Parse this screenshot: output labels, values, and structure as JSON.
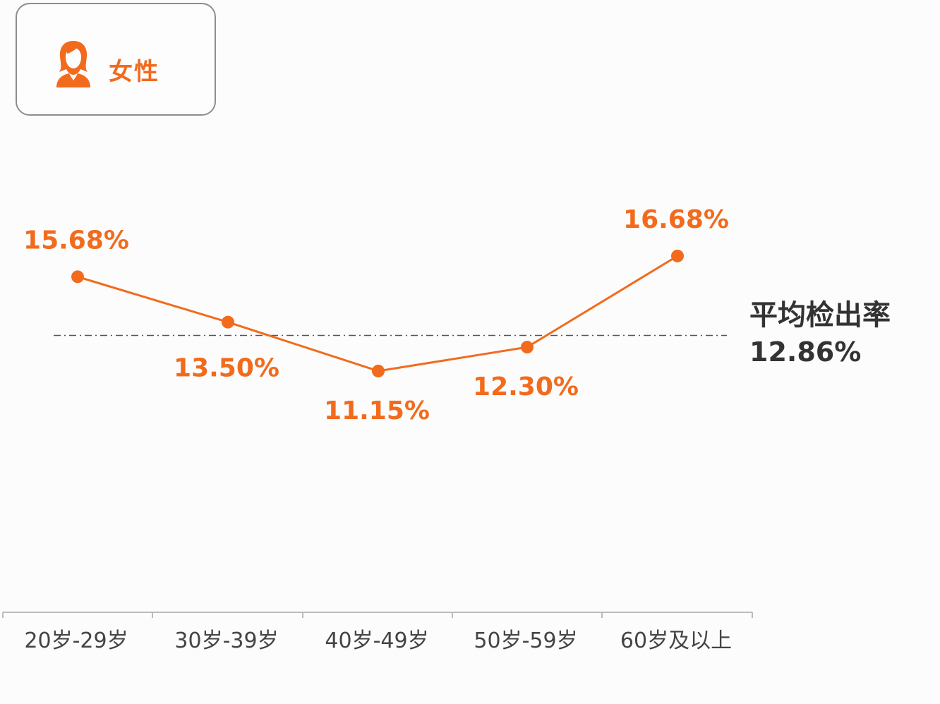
{
  "header": {
    "gender_label": "女性",
    "icon": "female-person-icon"
  },
  "colors": {
    "accent": "#f26b1d",
    "avg_line": "#555555",
    "axis": "#bbbbbb",
    "text": "#333333"
  },
  "chart_data": {
    "type": "line",
    "categories": [
      "20岁-29岁",
      "30岁-39岁",
      "40岁-49岁",
      "50岁-59岁",
      "60岁及以上"
    ],
    "values": [
      15.68,
      13.5,
      11.15,
      12.3,
      16.68
    ],
    "data_labels": [
      "15.68%",
      "13.50%",
      "11.15%",
      "12.30%",
      "16.68%"
    ],
    "reference_line": {
      "label": "平均检出率",
      "value": 12.86,
      "value_label": "12.86%",
      "style": "dash-dot"
    },
    "grid": false,
    "y_axis_visible": false
  }
}
